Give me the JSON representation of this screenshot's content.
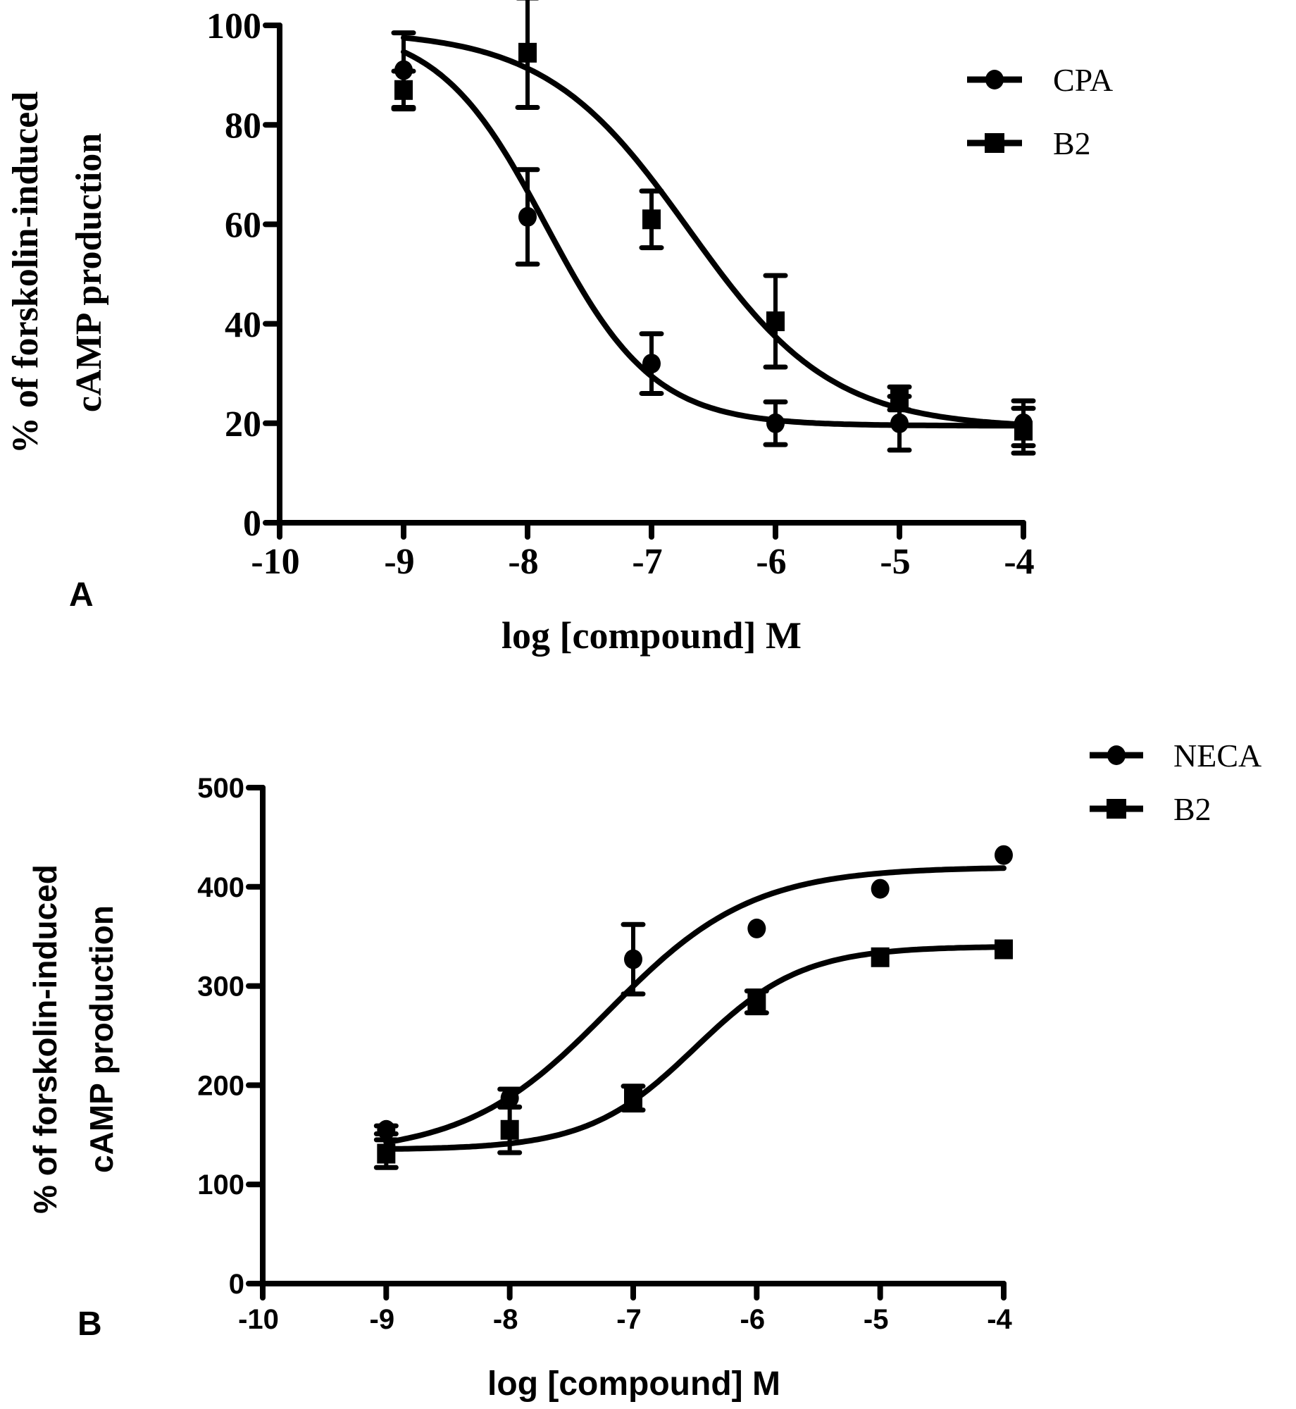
{
  "chart_data": [
    {
      "type": "scatter",
      "panel_label": "A",
      "title": "",
      "xlabel": "log [compound] M",
      "ylabel_lines": [
        "% of forskolin-induced",
        "cAMP production"
      ],
      "xlim": [
        -10,
        -4
      ],
      "ylim": [
        0,
        100
      ],
      "xticks": [
        -10,
        -9,
        -8,
        -7,
        -6,
        -5,
        -4
      ],
      "yticks": [
        0,
        20,
        40,
        60,
        80,
        100
      ],
      "grid": false,
      "legend_placement": "top-right",
      "series": [
        {
          "name": "CPA",
          "marker": "circle",
          "x": [
            -9,
            -8,
            -7,
            -6,
            -5,
            -4
          ],
          "y": [
            91,
            61.5,
            32,
            20,
            20,
            20
          ],
          "err": [
            7.5,
            9.5,
            6,
            4.3,
            5.4,
            4.5
          ],
          "fit": {
            "model": "sigmoidal dose-response",
            "bottom": 19.5,
            "top": 100,
            "logEC50": -7.85,
            "hill": 1
          }
        },
        {
          "name": "B2",
          "marker": "square",
          "x": [
            -9,
            -8,
            -7,
            -6,
            -5,
            -4
          ],
          "y": [
            87,
            94.5,
            61,
            40.5,
            25,
            18.5
          ],
          "err": [
            3.8,
            11,
            5.7,
            9.2,
            2.3,
            4.5
          ],
          "fit": {
            "model": "sigmoidal dose-response",
            "bottom": 19,
            "top": 99,
            "logEC50": -6.7,
            "hill": 0.75
          }
        }
      ]
    },
    {
      "type": "scatter",
      "panel_label": "B",
      "title": "",
      "xlabel": "log [compound] M",
      "ylabel_lines": [
        "% of forskolin-induced",
        "cAMP production"
      ],
      "xlim": [
        -10,
        -4
      ],
      "ylim": [
        0,
        500
      ],
      "xticks": [
        -10,
        -9,
        -8,
        -7,
        -6,
        -5,
        -4
      ],
      "yticks": [
        0,
        100,
        200,
        300,
        400,
        500
      ],
      "grid": false,
      "legend_placement": "top-right",
      "series": [
        {
          "name": "NECA",
          "marker": "circle",
          "x": [
            -9,
            -8,
            -7,
            -6,
            -5,
            -4
          ],
          "y": [
            155,
            187,
            327,
            358,
            398,
            432
          ],
          "err": [
            4,
            9,
            35,
            0,
            0,
            0
          ],
          "fit": {
            "model": "sigmoidal dose-response",
            "bottom": 130,
            "top": 420,
            "logEC50": -7.2,
            "hill": 0.75
          }
        },
        {
          "name": "B2",
          "marker": "square",
          "x": [
            -9,
            -8,
            -7,
            -6,
            -5,
            -4
          ],
          "y": [
            131,
            155,
            187,
            284,
            329,
            337
          ],
          "err": [
            14,
            23,
            12,
            11,
            0,
            0
          ],
          "fit": {
            "model": "sigmoidal dose-response",
            "bottom": 135,
            "top": 340,
            "logEC50": -6.5,
            "hill": 1
          }
        }
      ]
    }
  ]
}
